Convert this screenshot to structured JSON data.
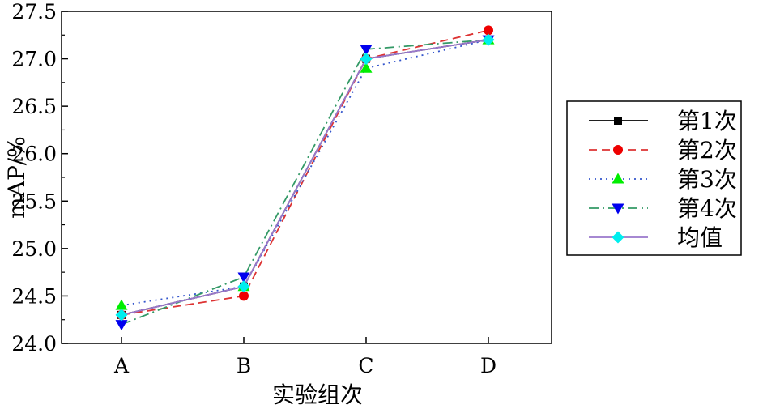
{
  "chart_data": {
    "type": "line",
    "xlabel": "实验组次",
    "ylabel": "mAP/%",
    "categories": [
      "A",
      "B",
      "C",
      "D"
    ],
    "ylim": [
      24.0,
      27.5
    ],
    "yticks": [
      "24.0",
      "24.5",
      "25.0",
      "25.5",
      "26.0",
      "26.5",
      "27.0",
      "27.5"
    ],
    "grid": false,
    "legend_position": "right",
    "series": [
      {
        "name": "第1次",
        "values": [
          24.3,
          24.6,
          27.0,
          27.2
        ],
        "color": "#000000",
        "dash": "solid",
        "marker": "square"
      },
      {
        "name": "第2次",
        "values": [
          24.3,
          24.5,
          27.0,
          27.3
        ],
        "color": "#dd3333",
        "dash": "dashed",
        "marker": "circle"
      },
      {
        "name": "第3次",
        "values": [
          24.4,
          24.6,
          26.9,
          27.2
        ],
        "color": "#3355cc",
        "dash": "dotted",
        "marker": "triangle-up",
        "marker_color": "#00ee00"
      },
      {
        "name": "第4次",
        "values": [
          24.2,
          24.7,
          27.1,
          27.2
        ],
        "color": "#339966",
        "dash": "dashdot",
        "marker": "triangle-down",
        "marker_color": "#0000ee"
      },
      {
        "name": "均值",
        "values": [
          24.3,
          24.6,
          27.0,
          27.2
        ],
        "color": "#9977cc",
        "dash": "solid",
        "marker": "diamond",
        "marker_color": "#00eeee"
      }
    ]
  }
}
